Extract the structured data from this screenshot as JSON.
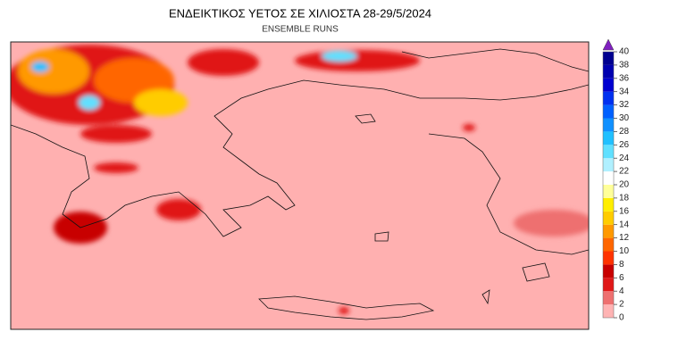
{
  "header": {
    "title": "ΕΝΔΕΙΚΤΙΚΟΣ ΥΕΤΟΣ ΣΕ ΧΙΛΙΟΣΤΑ 28-29/5/2024",
    "subtitle": "ENSEMBLE RUNS"
  },
  "colorbar": {
    "ticks": [
      0,
      2,
      4,
      6,
      8,
      10,
      12,
      14,
      16,
      18,
      20,
      22,
      24,
      26,
      28,
      30,
      32,
      34,
      36,
      38,
      40
    ],
    "colors": [
      "#ffb4b4",
      "#ee7070",
      "#e01818",
      "#c80000",
      "#ff3300",
      "#ff6600",
      "#ff9900",
      "#ffcc00",
      "#ffee00",
      "#ffff99",
      "#ffffff",
      "#b0f0ff",
      "#60e0ff",
      "#20c0ff",
      "#1090ff",
      "#0060ff",
      "#0030f0",
      "#0000d0",
      "#0000b0",
      "#000090"
    ],
    "extend_color": "#8020c0"
  }
}
